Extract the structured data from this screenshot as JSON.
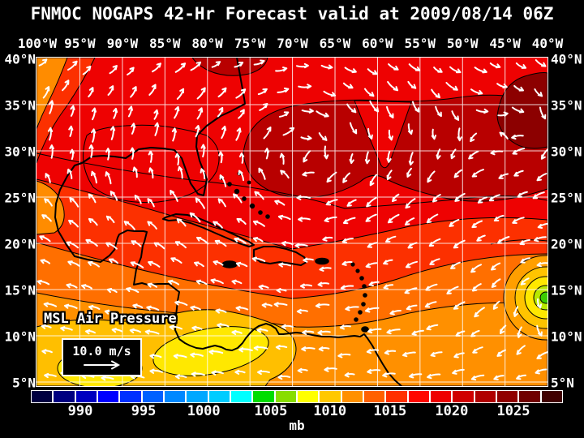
{
  "header": {
    "title": "FNMOC NOGAPS 42-Hr Forecast valid at 2009/08/14 06Z"
  },
  "map": {
    "lon_labels": [
      "100°W",
      "95°W",
      "90°W",
      "85°W",
      "80°W",
      "75°W",
      "70°W",
      "65°W",
      "60°W",
      "55°W",
      "50°W",
      "45°W",
      "40°W"
    ],
    "lat_labels": [
      "40°N",
      "35°N",
      "30°N",
      "25°N",
      "20°N",
      "15°N",
      "10°N",
      "5°N"
    ],
    "field_label": "MSL Air Pressure",
    "wind_legend": {
      "speed_label": "10.0 m/s",
      "icon": "wind-arrow-icon"
    },
    "colors": {
      "background": "#000000",
      "text": "#ffffff",
      "grid": "#ffffff",
      "coastline": "#000000",
      "wind_arrows": "#ffffff"
    }
  },
  "colorbar": {
    "unit": "mb",
    "tick_labels": [
      "990",
      "995",
      "1000",
      "1005",
      "1010",
      "1015",
      "1020",
      "1025"
    ],
    "tick_positions_pct": [
      9.3,
      21.2,
      32.5,
      45.1,
      56.2,
      67.5,
      79.1,
      90.7
    ],
    "cell_colors": [
      "#000040",
      "#000080",
      "#0000c0",
      "#0000ff",
      "#0030ff",
      "#0060ff",
      "#0088ff",
      "#00a8ff",
      "#00ccff",
      "#00ffff",
      "#00dd00",
      "#88dd00",
      "#ffff00",
      "#ffc800",
      "#ff9000",
      "#ff6000",
      "#ff3000",
      "#ff0800",
      "#ee0000",
      "#d00000",
      "#b00000",
      "#900000",
      "#700000",
      "#400000"
    ]
  },
  "chart_data": {
    "type": "heatmap",
    "title": "FNMOC NOGAPS 42-Hr Forecast valid at 2009/08/14 06Z",
    "variable": "MSL Air Pressure",
    "unit": "mb",
    "scale_ticks": [
      990,
      995,
      1000,
      1005,
      1010,
      1015,
      1020,
      1025
    ],
    "lon_range_degW": [
      100,
      40
    ],
    "lat_range_degN": [
      5,
      40
    ],
    "vector_overlay": {
      "quantity": "wind",
      "reference_speed_mps": 10.0
    },
    "features": [
      {
        "name": "subtropical-high",
        "approx_lat_degN": 31,
        "approx_lon_degW": 62,
        "approx_pressure_mb": 1022
      },
      {
        "name": "secondary-high",
        "approx_lat_degN": 32,
        "approx_lon_degW": 43,
        "approx_pressure_mb": 1024
      },
      {
        "name": "tropical-low",
        "approx_lat_degN": 14,
        "approx_lon_degW": 40,
        "approx_pressure_mb": 1006
      },
      {
        "name": "central-america-low-band",
        "approx_lat_degN": 11,
        "approx_lon_degW": 83,
        "approx_pressure_mb": 1008
      }
    ]
  }
}
